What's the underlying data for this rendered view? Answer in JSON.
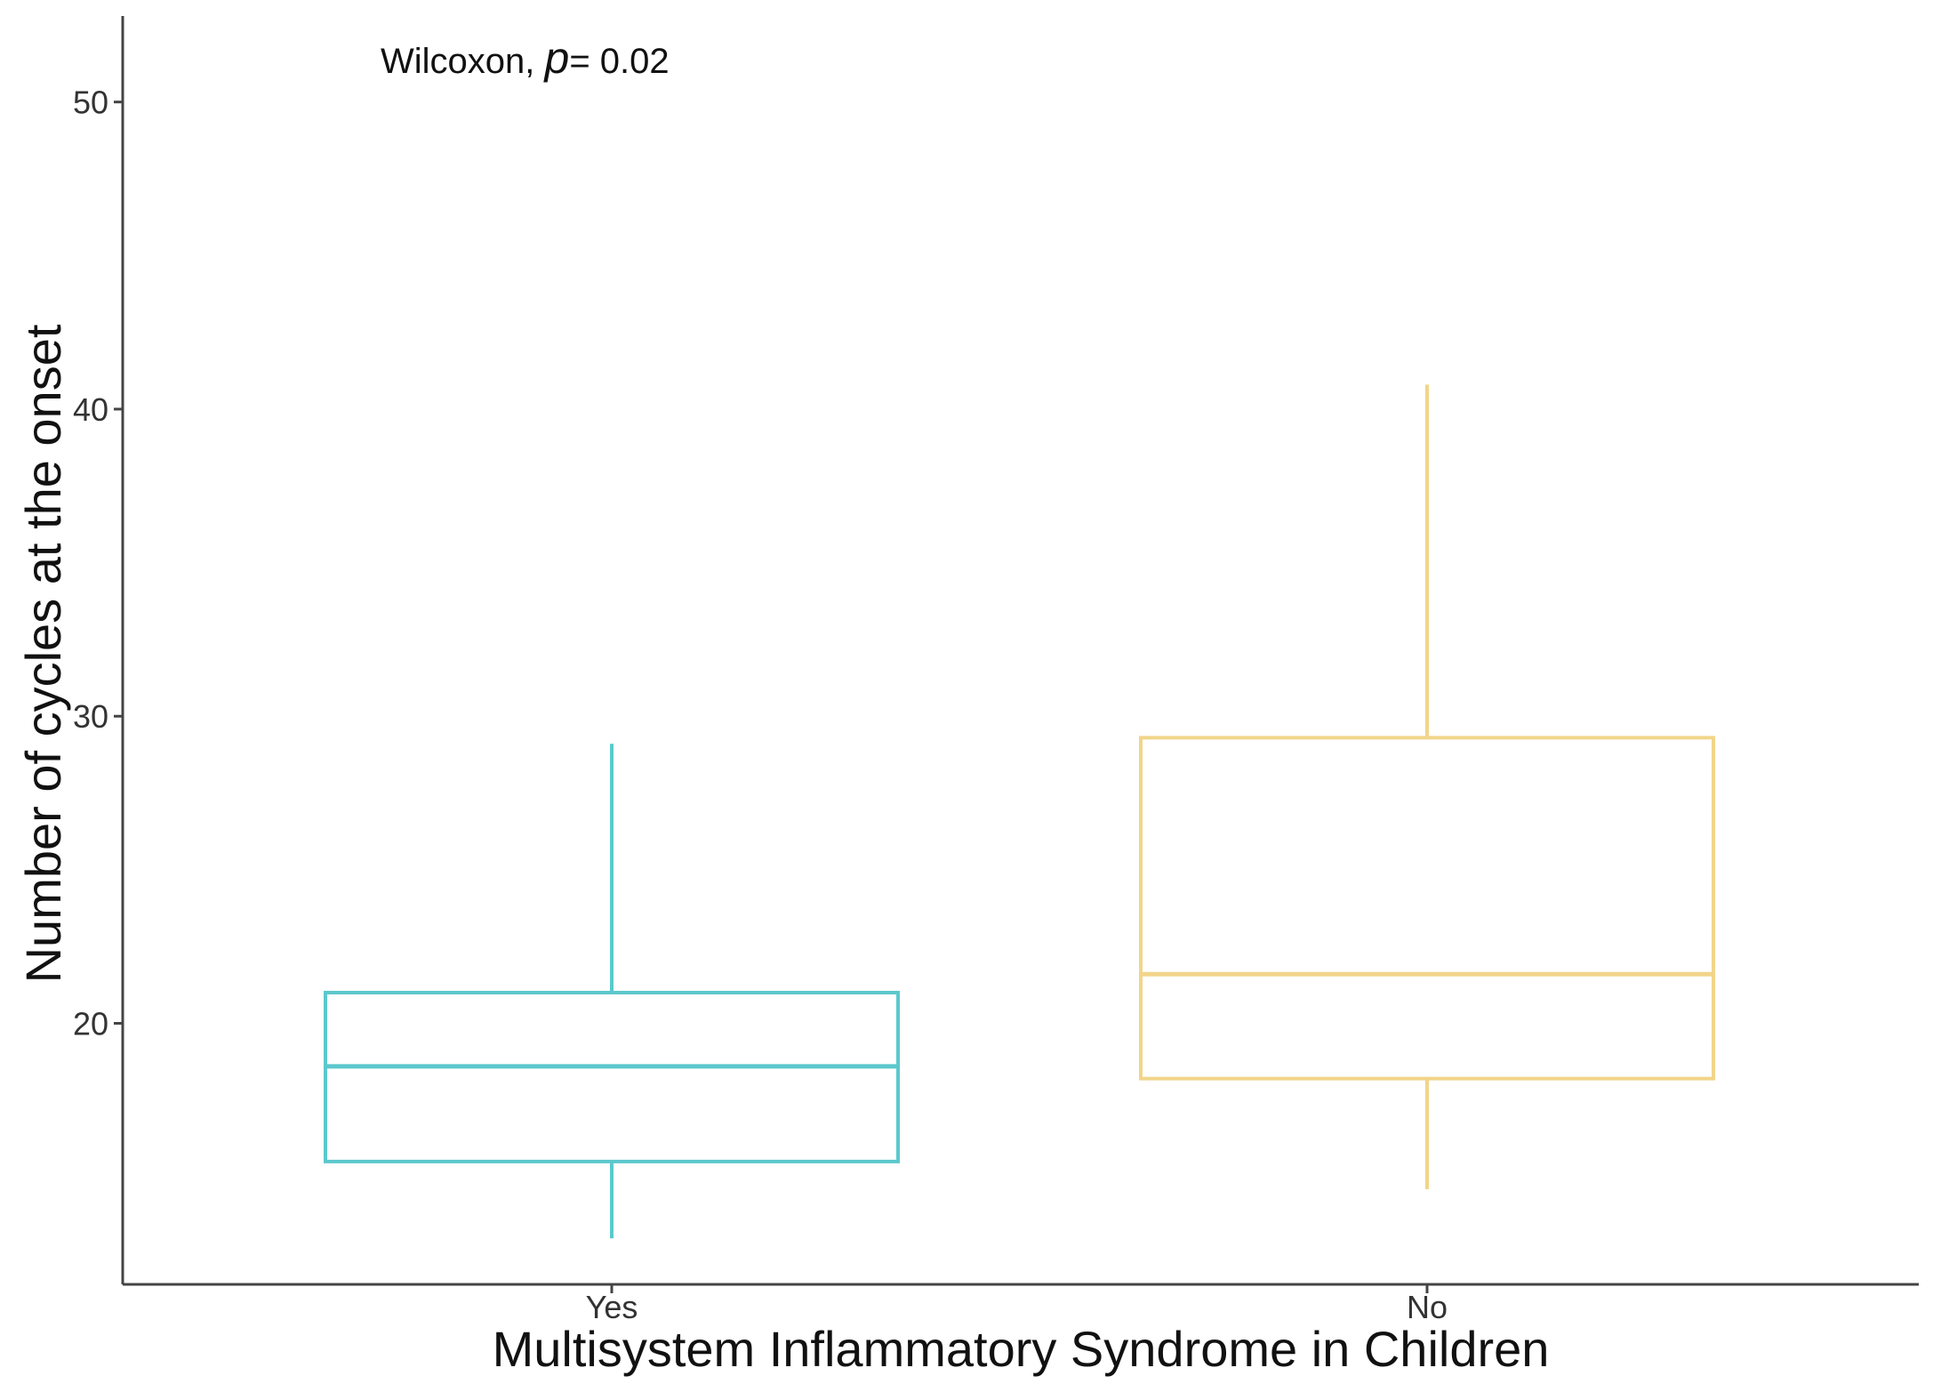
{
  "chart_data": {
    "type": "box",
    "xlabel": "Multisystem Inflammatory Syndrome in Children",
    "ylabel": "Number of cycles at the onset",
    "ylim": [
      11.5,
      52.8
    ],
    "yticks": [
      20,
      30,
      40,
      50
    ],
    "grid": false,
    "legend": "none",
    "annotation": {
      "prefix": "Wilcoxon, ",
      "p_symbol": "p",
      "suffix": "= 0.02"
    },
    "categories": [
      "Yes",
      "No"
    ],
    "boxes": [
      {
        "category": "Yes",
        "min": 13,
        "q1": 15.5,
        "median": 18.6,
        "q3": 21,
        "max": 29.1,
        "color": "#5cc8cc"
      },
      {
        "category": "No",
        "min": 14.6,
        "q1": 18.2,
        "median": 21.6,
        "q3": 29.3,
        "max": 40.8,
        "color": "#f2d58a"
      }
    ]
  }
}
